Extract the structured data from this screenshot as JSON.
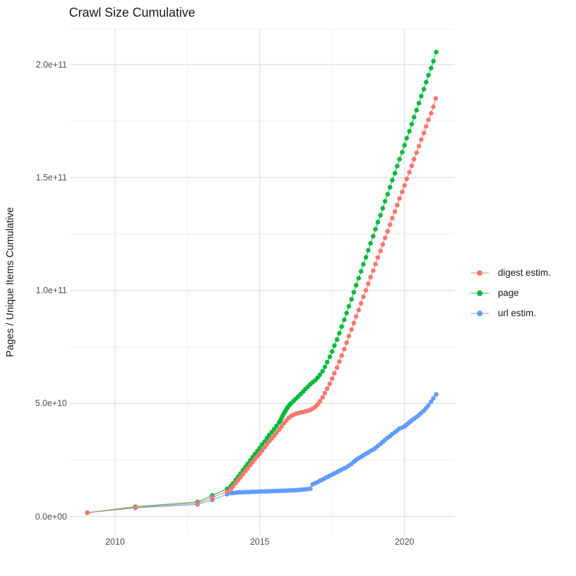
{
  "chart_data": {
    "type": "scatter",
    "title": "Crawl Size Cumulative",
    "xlabel": "",
    "ylabel": "Pages / Unique Items Cumulative",
    "value_unit": "1e9 (billions); y axis shown in scientific notation",
    "xlim": [
      2008.43,
      2021.74
    ],
    "ylim_e9": [
      -10.3,
      216.3
    ],
    "grid": {
      "major_color": "#E2E2E2",
      "minor_color": "#EFEFEF",
      "background": "#FFFFFF"
    },
    "legend_position": "right",
    "x_ticks": [
      {
        "v": 2010,
        "label": "2010"
      },
      {
        "v": 2015,
        "label": "2015"
      },
      {
        "v": 2020,
        "label": "2020"
      }
    ],
    "x_minor": [
      2012.5,
      2017.5
    ],
    "y_ticks": [
      {
        "v": 0,
        "label": "0.0e+00"
      },
      {
        "v": 50,
        "label": "5.0e+10"
      },
      {
        "v": 100,
        "label": "1.0e+11"
      },
      {
        "v": 150,
        "label": "1.5e+11"
      },
      {
        "v": 200,
        "label": "2.0e+11"
      }
    ],
    "y_minor_e9": [
      25,
      75,
      125,
      175
    ],
    "series": [
      {
        "name": "digest estim.",
        "color": "#F8766D",
        "z": 3,
        "points": [
          [
            2009.04,
            1.6
          ],
          [
            2010.7,
            4.0
          ],
          [
            2012.85,
            5.9
          ],
          [
            2013.36,
            8.4
          ],
          [
            2013.87,
            11.0
          ],
          [
            2014.0,
            12.1
          ],
          [
            2014.08,
            13.3
          ],
          [
            2014.17,
            14.7
          ],
          [
            2014.25,
            16.0
          ],
          [
            2014.33,
            17.3
          ],
          [
            2014.42,
            18.7
          ],
          [
            2014.5,
            20.0
          ],
          [
            2014.58,
            21.3
          ],
          [
            2014.67,
            22.7
          ],
          [
            2014.75,
            24.0
          ],
          [
            2014.83,
            25.3
          ],
          [
            2014.92,
            26.6
          ],
          [
            2015.0,
            27.8
          ],
          [
            2015.08,
            29.2
          ],
          [
            2015.17,
            30.6
          ],
          [
            2015.25,
            32.0
          ],
          [
            2015.33,
            33.3
          ],
          [
            2015.42,
            34.5
          ],
          [
            2015.5,
            35.7
          ],
          [
            2015.58,
            37.0
          ],
          [
            2015.67,
            38.4
          ],
          [
            2015.75,
            39.8
          ],
          [
            2015.83,
            41.2
          ],
          [
            2015.92,
            42.5
          ],
          [
            2016.0,
            43.6
          ],
          [
            2016.08,
            44.4
          ],
          [
            2016.17,
            45.0
          ],
          [
            2016.25,
            45.4
          ],
          [
            2016.33,
            45.7
          ],
          [
            2016.42,
            46.0
          ],
          [
            2016.5,
            46.2
          ],
          [
            2016.58,
            46.5
          ],
          [
            2016.67,
            46.8
          ],
          [
            2016.75,
            47.2
          ],
          [
            2016.83,
            47.7
          ],
          [
            2016.92,
            48.5
          ],
          [
            2017.0,
            49.6
          ],
          [
            2017.08,
            51.0
          ],
          [
            2017.17,
            52.7
          ],
          [
            2017.25,
            54.6
          ],
          [
            2017.33,
            56.6
          ],
          [
            2017.42,
            58.7
          ],
          [
            2017.5,
            61.0
          ],
          [
            2017.58,
            63.4
          ],
          [
            2017.67,
            65.9
          ],
          [
            2017.75,
            68.5
          ],
          [
            2017.83,
            71.2
          ],
          [
            2017.92,
            74.0
          ],
          [
            2018.0,
            76.9
          ],
          [
            2018.08,
            79.8
          ],
          [
            2018.17,
            82.7
          ],
          [
            2018.25,
            85.6
          ],
          [
            2018.33,
            88.5
          ],
          [
            2018.42,
            91.4
          ],
          [
            2018.5,
            94.3
          ],
          [
            2018.58,
            97.2
          ],
          [
            2018.67,
            100.1
          ],
          [
            2018.75,
            103.0
          ],
          [
            2018.83,
            105.9
          ],
          [
            2018.92,
            108.8
          ],
          [
            2019.0,
            111.7
          ],
          [
            2019.08,
            114.6
          ],
          [
            2019.17,
            117.5
          ],
          [
            2019.25,
            120.4
          ],
          [
            2019.33,
            123.3
          ],
          [
            2019.42,
            126.2
          ],
          [
            2019.5,
            129.1
          ],
          [
            2019.58,
            132.0
          ],
          [
            2019.67,
            134.9
          ],
          [
            2019.75,
            137.8
          ],
          [
            2019.83,
            140.7
          ],
          [
            2019.92,
            143.6
          ],
          [
            2020.0,
            146.5
          ],
          [
            2020.08,
            149.4
          ],
          [
            2020.17,
            152.3
          ],
          [
            2020.25,
            155.2
          ],
          [
            2020.33,
            158.1
          ],
          [
            2020.42,
            161.0
          ],
          [
            2020.5,
            163.9
          ],
          [
            2020.58,
            166.8
          ],
          [
            2020.67,
            169.7
          ],
          [
            2020.75,
            172.6
          ],
          [
            2020.83,
            175.5
          ],
          [
            2020.92,
            178.4
          ],
          [
            2021.0,
            181.3
          ],
          [
            2021.08,
            185.0
          ]
        ]
      },
      {
        "name": "page",
        "color": "#00BA38",
        "z": 1,
        "points": [
          [
            2009.04,
            1.7
          ],
          [
            2010.7,
            4.3
          ],
          [
            2012.85,
            6.4
          ],
          [
            2013.36,
            9.3
          ],
          [
            2013.87,
            12.2
          ],
          [
            2014.0,
            13.4
          ],
          [
            2014.08,
            14.7
          ],
          [
            2014.17,
            16.2
          ],
          [
            2014.25,
            17.6
          ],
          [
            2014.33,
            19.0
          ],
          [
            2014.42,
            20.5
          ],
          [
            2014.5,
            21.9
          ],
          [
            2014.58,
            23.3
          ],
          [
            2014.67,
            24.8
          ],
          [
            2014.75,
            26.2
          ],
          [
            2014.83,
            27.6
          ],
          [
            2014.92,
            29.0
          ],
          [
            2015.0,
            30.3
          ],
          [
            2015.08,
            31.8
          ],
          [
            2015.17,
            33.2
          ],
          [
            2015.25,
            34.7
          ],
          [
            2015.33,
            36.1
          ],
          [
            2015.42,
            37.4
          ],
          [
            2015.5,
            38.7
          ],
          [
            2015.58,
            40.1
          ],
          [
            2015.67,
            41.6
          ],
          [
            2015.71,
            42.5
          ],
          [
            2015.75,
            43.5
          ],
          [
            2015.79,
            44.5
          ],
          [
            2015.83,
            45.5
          ],
          [
            2015.88,
            46.5
          ],
          [
            2015.92,
            47.4
          ],
          [
            2015.96,
            48.2
          ],
          [
            2016.0,
            48.9
          ],
          [
            2016.04,
            49.5
          ],
          [
            2016.08,
            50.1
          ],
          [
            2016.17,
            51.1
          ],
          [
            2016.25,
            52.1
          ],
          [
            2016.33,
            53.1
          ],
          [
            2016.42,
            54.2
          ],
          [
            2016.5,
            55.3
          ],
          [
            2016.58,
            56.4
          ],
          [
            2016.67,
            57.5
          ],
          [
            2016.75,
            58.5
          ],
          [
            2016.83,
            59.4
          ],
          [
            2016.92,
            60.3
          ],
          [
            2017.0,
            61.4
          ],
          [
            2017.08,
            62.7
          ],
          [
            2017.17,
            64.3
          ],
          [
            2017.25,
            66.2
          ],
          [
            2017.33,
            68.3
          ],
          [
            2017.42,
            70.6
          ],
          [
            2017.5,
            73.0
          ],
          [
            2017.58,
            75.6
          ],
          [
            2017.67,
            78.3
          ],
          [
            2017.75,
            81.1
          ],
          [
            2017.83,
            84.0
          ],
          [
            2017.92,
            87.0
          ],
          [
            2018.0,
            90.0
          ],
          [
            2018.08,
            93.0
          ],
          [
            2018.17,
            96.1
          ],
          [
            2018.25,
            99.2
          ],
          [
            2018.33,
            102.3
          ],
          [
            2018.42,
            105.4
          ],
          [
            2018.5,
            108.5
          ],
          [
            2018.58,
            111.6
          ],
          [
            2018.67,
            114.7
          ],
          [
            2018.75,
            117.8
          ],
          [
            2018.83,
            120.9
          ],
          [
            2018.92,
            124.0
          ],
          [
            2019.0,
            127.1
          ],
          [
            2019.08,
            130.2
          ],
          [
            2019.17,
            133.3
          ],
          [
            2019.25,
            136.4
          ],
          [
            2019.33,
            139.5
          ],
          [
            2019.42,
            142.6
          ],
          [
            2019.5,
            145.7
          ],
          [
            2019.58,
            148.8
          ],
          [
            2019.67,
            151.9
          ],
          [
            2019.75,
            155.0
          ],
          [
            2019.83,
            158.1
          ],
          [
            2019.92,
            161.2
          ],
          [
            2020.0,
            164.3
          ],
          [
            2020.08,
            167.4
          ],
          [
            2020.17,
            170.5
          ],
          [
            2020.25,
            173.6
          ],
          [
            2020.33,
            176.7
          ],
          [
            2020.42,
            179.8
          ],
          [
            2020.5,
            182.9
          ],
          [
            2020.58,
            186.0
          ],
          [
            2020.67,
            189.1
          ],
          [
            2020.75,
            192.2
          ],
          [
            2020.83,
            195.3
          ],
          [
            2020.92,
            198.4
          ],
          [
            2021.0,
            201.5
          ],
          [
            2021.1,
            205.5
          ]
        ]
      },
      {
        "name": "url estim.",
        "color": "#619CFF",
        "z": 2,
        "points": [
          [
            2009.04,
            1.7
          ],
          [
            2010.7,
            3.8
          ],
          [
            2012.85,
            5.3
          ],
          [
            2013.36,
            7.3
          ],
          [
            2013.87,
            9.8
          ],
          [
            2014.0,
            10.3
          ],
          [
            2014.08,
            10.4
          ],
          [
            2014.17,
            10.5
          ],
          [
            2014.25,
            10.6
          ],
          [
            2014.33,
            10.65
          ],
          [
            2014.42,
            10.7
          ],
          [
            2014.5,
            10.75
          ],
          [
            2014.58,
            10.8
          ],
          [
            2014.67,
            10.85
          ],
          [
            2014.75,
            10.9
          ],
          [
            2014.83,
            10.9
          ],
          [
            2014.92,
            11.0
          ],
          [
            2015.0,
            11.0
          ],
          [
            2015.08,
            11.05
          ],
          [
            2015.17,
            11.1
          ],
          [
            2015.25,
            11.1
          ],
          [
            2015.33,
            11.15
          ],
          [
            2015.42,
            11.2
          ],
          [
            2015.5,
            11.25
          ],
          [
            2015.58,
            11.3
          ],
          [
            2015.67,
            11.3
          ],
          [
            2015.75,
            11.35
          ],
          [
            2015.83,
            11.4
          ],
          [
            2015.92,
            11.45
          ],
          [
            2016.0,
            11.5
          ],
          [
            2016.08,
            11.55
          ],
          [
            2016.17,
            11.6
          ],
          [
            2016.25,
            11.65
          ],
          [
            2016.33,
            11.7
          ],
          [
            2016.42,
            11.8
          ],
          [
            2016.5,
            11.9
          ],
          [
            2016.58,
            12.0
          ],
          [
            2016.67,
            12.1
          ],
          [
            2016.75,
            12.3
          ],
          [
            2016.83,
            14.2
          ],
          [
            2016.92,
            14.7
          ],
          [
            2017.0,
            15.2
          ],
          [
            2017.08,
            15.8
          ],
          [
            2017.17,
            16.3
          ],
          [
            2017.25,
            16.9
          ],
          [
            2017.33,
            17.4
          ],
          [
            2017.42,
            18.0
          ],
          [
            2017.5,
            18.5
          ],
          [
            2017.58,
            19.1
          ],
          [
            2017.67,
            19.6
          ],
          [
            2017.75,
            20.2
          ],
          [
            2017.83,
            20.7
          ],
          [
            2017.92,
            21.3
          ],
          [
            2018.0,
            21.8
          ],
          [
            2018.08,
            22.5
          ],
          [
            2018.17,
            23.3
          ],
          [
            2018.25,
            24.2
          ],
          [
            2018.3,
            24.7
          ],
          [
            2018.35,
            25.2
          ],
          [
            2018.42,
            25.8
          ],
          [
            2018.5,
            26.4
          ],
          [
            2018.58,
            27.0
          ],
          [
            2018.67,
            27.7
          ],
          [
            2018.75,
            28.3
          ],
          [
            2018.83,
            29.0
          ],
          [
            2018.92,
            29.6
          ],
          [
            2019.0,
            30.3
          ],
          [
            2019.08,
            31.2
          ],
          [
            2019.17,
            32.1
          ],
          [
            2019.25,
            33.0
          ],
          [
            2019.33,
            33.9
          ],
          [
            2019.42,
            34.8
          ],
          [
            2019.5,
            35.6
          ],
          [
            2019.58,
            36.5
          ],
          [
            2019.67,
            37.3
          ],
          [
            2019.75,
            38.1
          ],
          [
            2019.83,
            38.9
          ],
          [
            2019.92,
            39.3
          ],
          [
            2020.0,
            39.8
          ],
          [
            2020.04,
            40.2
          ],
          [
            2020.08,
            40.7
          ],
          [
            2020.13,
            41.2
          ],
          [
            2020.17,
            41.7
          ],
          [
            2020.21,
            42.1
          ],
          [
            2020.25,
            42.5
          ],
          [
            2020.33,
            43.2
          ],
          [
            2020.42,
            44.0
          ],
          [
            2020.5,
            44.9
          ],
          [
            2020.58,
            45.8
          ],
          [
            2020.67,
            46.8
          ],
          [
            2020.75,
            47.9
          ],
          [
            2020.83,
            49.2
          ],
          [
            2020.92,
            50.8
          ],
          [
            2021.0,
            52.3
          ],
          [
            2021.1,
            54.0
          ]
        ]
      }
    ]
  }
}
